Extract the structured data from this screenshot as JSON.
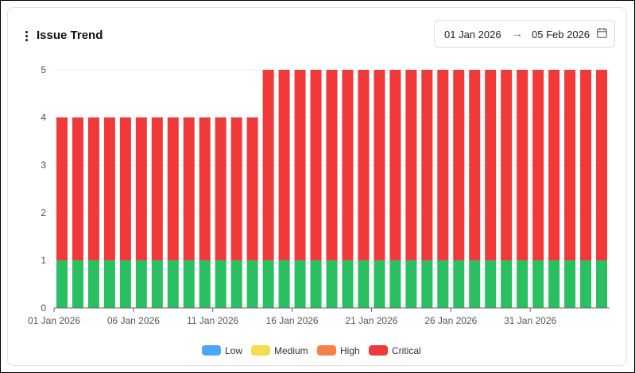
{
  "header": {
    "title": "Issue Trend",
    "date_from": "01 Jan 2026",
    "date_to": "05 Feb 2026",
    "arrow": "→"
  },
  "chart_data": {
    "type": "bar",
    "stacked": true,
    "title": "Issue Trend",
    "xlabel": "",
    "ylabel": "",
    "ylim": [
      0,
      5
    ],
    "yticks": [
      0,
      1,
      2,
      3,
      4,
      5
    ],
    "grid": true,
    "legend_position": "bottom",
    "categories": [
      "01 Jan 2026",
      "02 Jan 2026",
      "03 Jan 2026",
      "04 Jan 2026",
      "05 Jan 2026",
      "06 Jan 2026",
      "07 Jan 2026",
      "08 Jan 2026",
      "09 Jan 2026",
      "10 Jan 2026",
      "11 Jan 2026",
      "12 Jan 2026",
      "13 Jan 2026",
      "14 Jan 2026",
      "15 Jan 2026",
      "16 Jan 2026",
      "17 Jan 2026",
      "18 Jan 2026",
      "19 Jan 2026",
      "20 Jan 2026",
      "21 Jan 2026",
      "22 Jan 2026",
      "23 Jan 2026",
      "24 Jan 2026",
      "25 Jan 2026",
      "26 Jan 2026",
      "27 Jan 2026",
      "28 Jan 2026",
      "29 Jan 2026",
      "30 Jan 2026",
      "31 Jan 2026",
      "01 Feb 2026",
      "02 Feb 2026",
      "03 Feb 2026",
      "04 Feb 2026"
    ],
    "xtick_labels": [
      "01 Jan 2026",
      "06 Jan 2026",
      "11 Jan 2026",
      "16 Jan 2026",
      "21 Jan 2026",
      "26 Jan 2026",
      "31 Jan 2026"
    ],
    "xtick_every": 5,
    "series": [
      {
        "name": "Low",
        "color": "#4da6f8",
        "values": [
          1,
          1,
          1,
          1,
          1,
          1,
          1,
          1,
          1,
          1,
          1,
          1,
          1,
          1,
          1,
          1,
          1,
          1,
          1,
          1,
          1,
          1,
          1,
          1,
          1,
          1,
          1,
          1,
          1,
          1,
          1,
          1,
          1,
          1,
          1
        ]
      },
      {
        "name": "Medium",
        "color": "#f7dc4d",
        "values": [
          0,
          0,
          0,
          0,
          0,
          0,
          0,
          0,
          0,
          0,
          0,
          0,
          0,
          0,
          0,
          0,
          0,
          0,
          0,
          0,
          0,
          0,
          0,
          0,
          0,
          0,
          0,
          0,
          0,
          0,
          0,
          0,
          0,
          0,
          0
        ]
      },
      {
        "name": "High",
        "color": "#f58148",
        "values": [
          0,
          0,
          0,
          0,
          0,
          0,
          0,
          0,
          0,
          0,
          0,
          0,
          0,
          0,
          0,
          0,
          0,
          0,
          0,
          0,
          0,
          0,
          0,
          0,
          0,
          0,
          0,
          0,
          0,
          0,
          0,
          0,
          0,
          0,
          0
        ]
      },
      {
        "name": "Critical",
        "color": "#f2393a",
        "values": [
          3,
          3,
          3,
          3,
          3,
          3,
          3,
          3,
          3,
          3,
          3,
          3,
          3,
          4,
          4,
          4,
          4,
          4,
          4,
          4,
          4,
          4,
          4,
          4,
          4,
          4,
          4,
          4,
          4,
          4,
          4,
          4,
          4,
          4,
          4
        ]
      }
    ],
    "bar_base_color": "#2abf63"
  }
}
